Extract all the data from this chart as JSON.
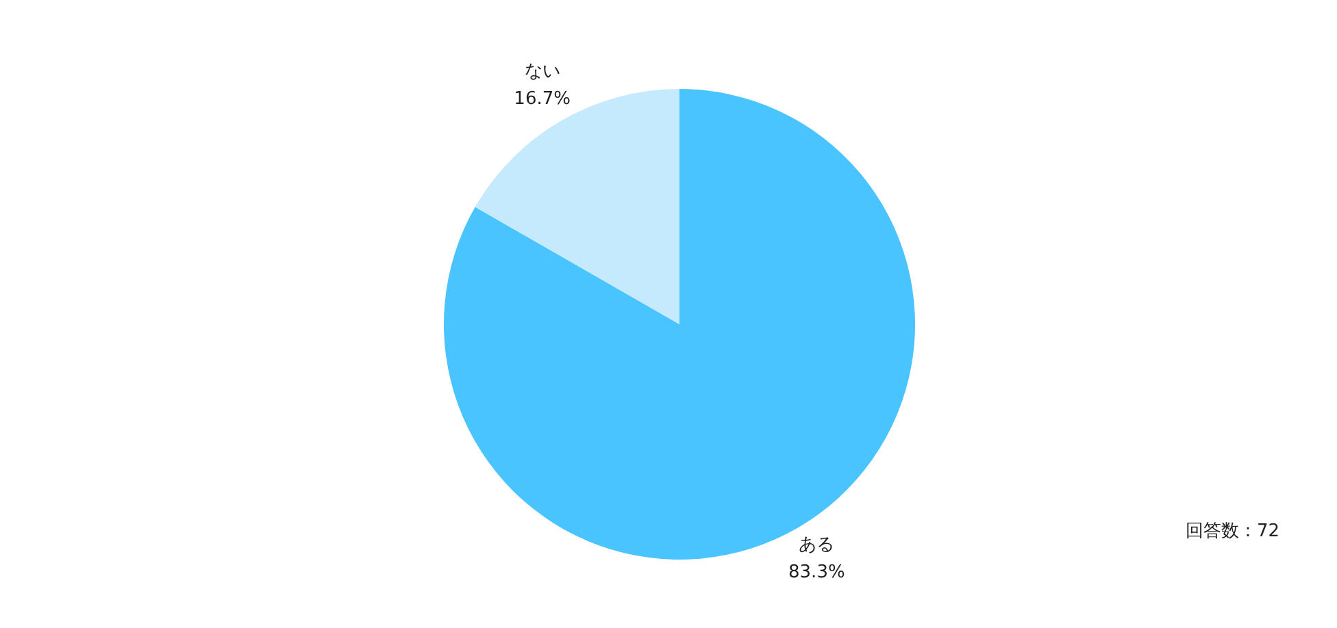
{
  "chart_data": {
    "type": "pie",
    "categories": [
      "ある",
      "ない"
    ],
    "values": [
      83.3,
      16.7
    ],
    "colors": [
      "#4ac4ff",
      "#c5eafd"
    ],
    "value_labels": [
      "83.3%",
      "16.7%"
    ],
    "annotations": [
      "回答数：72"
    ]
  }
}
